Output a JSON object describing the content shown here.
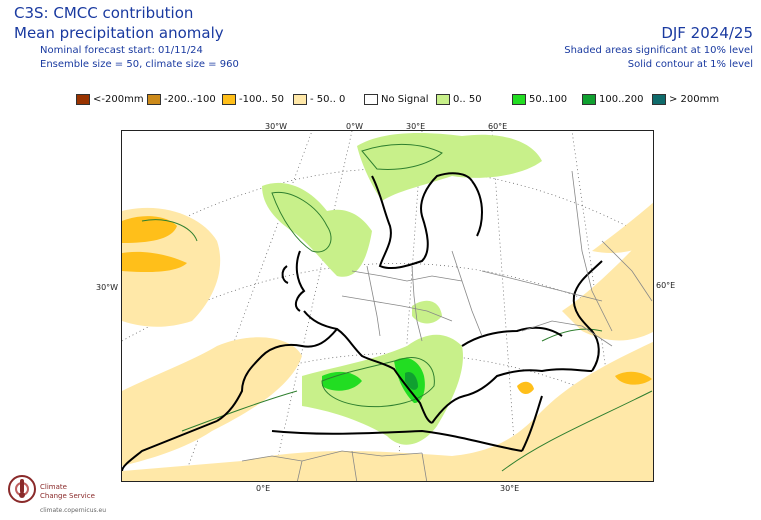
{
  "header": {
    "title_line1": "C3S: CMCC contribution",
    "title_line2": "Mean precipitation anomaly",
    "forecast_start": "Nominal forecast start: 01/11/24",
    "ensemble": "Ensemble size = 50, climate size = 960",
    "season": "DJF 2024/25",
    "sig_shaded": "Shaded areas significant at 10% level",
    "sig_contour": "Solid contour at 1% level"
  },
  "legend": [
    {
      "label": "<-200mm",
      "color": "#993300"
    },
    {
      "label": "-200..-100",
      "color": "#cc8a1a"
    },
    {
      "label": "-100.. 50",
      "color": "#ffbf1a"
    },
    {
      "label": "- 50.. 0",
      "color": "#ffe8a8"
    },
    {
      "label": "No Signal",
      "color": "#ffffff"
    },
    {
      "label": "0.. 50",
      "color": "#c8f08a"
    },
    {
      "label": "50..100",
      "color": "#22dd22"
    },
    {
      "label": "100..200",
      "color": "#10a030"
    },
    {
      "label": "> 200mm",
      "color": "#0f6b6b"
    }
  ],
  "map": {
    "top_lon_labels": [
      "30°W",
      "0°W",
      "30°E",
      "60°E"
    ],
    "left_lat_label": "30°W",
    "right_lat_label": "60°E",
    "bottom_lon_labels": [
      "0°E",
      "30°E"
    ]
  },
  "logo": {
    "line1": "Climate",
    "line2": "Change Service",
    "url": "climate.copernicus.eu"
  }
}
